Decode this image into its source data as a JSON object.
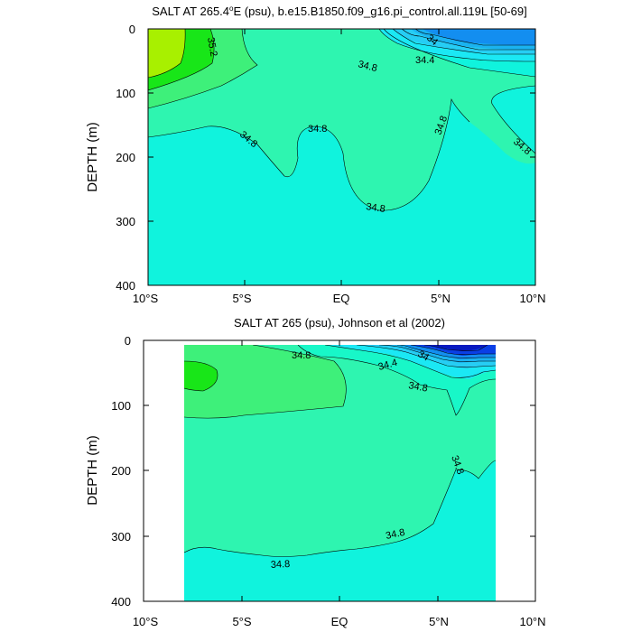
{
  "colors": {
    "green_yellow": "#a8f000",
    "green": "#18e618",
    "green_mid": "#3ef07a",
    "sea_green": "#2ef5b0",
    "aqua_green": "#18f7c8",
    "aqua": "#10f3dd",
    "cyan": "#1be8f4",
    "light_blue": "#26cdf4",
    "sky_blue": "#1ab3f0",
    "blue": "#138ef0",
    "deep_blue": "#0a3fe6",
    "navy": "#0719c0"
  },
  "chart_data": [
    {
      "type": "contour",
      "title": "SALT AT 265.4°E (psu), b.e15.B1850.f09_g16.pi_control.all.119L [50-69]",
      "title_parts": [
        "SALT AT 265.4",
        "o",
        "E (psu), b.e15.B1850.f09_g16.pi_control.all.119L [50-69]"
      ],
      "ylabel": "DEPTH (m)",
      "xlabel": "",
      "x_range": [
        -10,
        10
      ],
      "y_range": [
        0,
        400
      ],
      "y_reversed": true,
      "x_tick_labels": [
        "10°S",
        "5°S",
        "EQ",
        "5°N",
        "10°N"
      ],
      "y_tick_labels": [
        "0",
        "100",
        "200",
        "300",
        "400"
      ],
      "contour_labels": [
        "35.2",
        "34.8",
        "34.4",
        "34",
        "34.8",
        "34.8",
        "34.8",
        "34.8",
        "34.8"
      ],
      "field_extent_x": [
        -10,
        10
      ],
      "field_extent_depth": [
        5,
        400
      ]
    },
    {
      "type": "contour",
      "title": "SALT AT 265 (psu), Johnson et al (2002)",
      "ylabel": "DEPTH (m)",
      "xlabel": "",
      "x_range": [
        -10,
        10
      ],
      "y_range": [
        0,
        400
      ],
      "y_reversed": true,
      "x_tick_labels": [
        "10°S",
        "5°S",
        "EQ",
        "5°N",
        "10°N"
      ],
      "y_tick_labels": [
        "0",
        "100",
        "200",
        "300",
        "400"
      ],
      "contour_labels": [
        "34.8",
        "34",
        "34.4",
        "34.8",
        "34.8",
        "34.8",
        "34.8"
      ],
      "field_extent_x": [
        -8,
        8
      ],
      "field_extent_depth": [
        5,
        400
      ]
    }
  ]
}
